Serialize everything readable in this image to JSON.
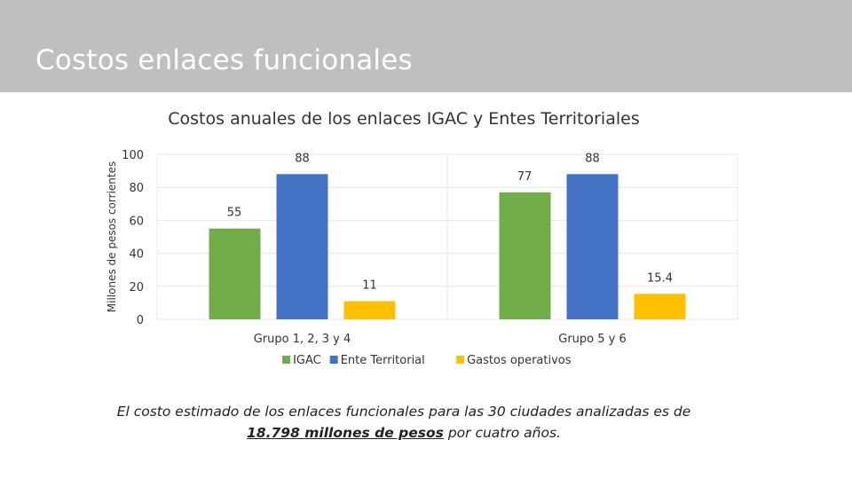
{
  "slide": {
    "title": "Costos enlaces funcionales",
    "caption_before": "El costo estimado de los enlaces funcionales para las 30 ciudades analizadas es de",
    "caption_emphasis": "18.798 millones de pesos",
    "caption_after": " por cuatro años."
  },
  "chart_data": {
    "type": "bar",
    "title": "Costos anuales de los enlaces IGAC y Entes Territoriales",
    "ylabel": "Millones de pesos corrientes",
    "xlabel": "",
    "ylim": [
      0,
      100
    ],
    "yticks": [
      0,
      20,
      40,
      60,
      80,
      100
    ],
    "grid": true,
    "legend_position": "bottom",
    "categories": [
      "Grupo 1, 2, 3 y 4",
      "Grupo 5 y 6"
    ],
    "series": [
      {
        "name": "IGAC",
        "color": "#70ad47",
        "values": [
          55,
          77
        ],
        "labels": [
          "55",
          "77"
        ]
      },
      {
        "name": "Ente Territorial",
        "color": "#4472c4",
        "values": [
          88,
          88
        ],
        "labels": [
          "88",
          "88"
        ]
      },
      {
        "name": "Gastos operativos",
        "color": "#ffc000",
        "values": [
          11,
          15.4
        ],
        "labels": [
          "11",
          "15.4"
        ]
      }
    ]
  }
}
